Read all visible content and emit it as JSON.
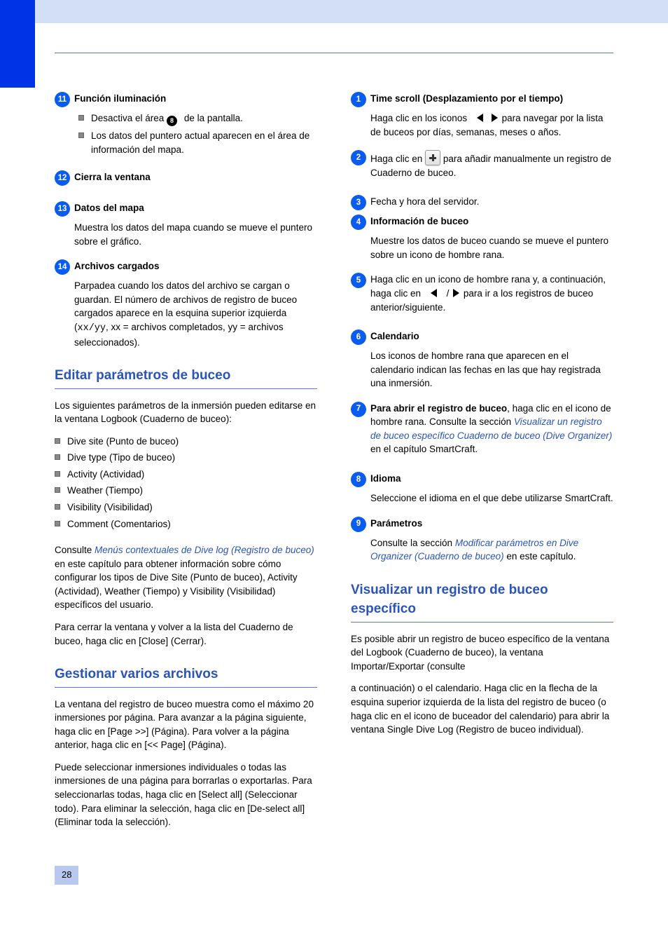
{
  "colors": {
    "accent": "#0a5cf0",
    "header_bar": "#d3dff5",
    "blue_block": "#0033e6",
    "rule": "#5577dd",
    "heading_text": "#2a54b8",
    "bullet_square": "#888888",
    "page_box_bg": "#b8c8ef",
    "body_text": "#000000",
    "background": "#ffffff"
  },
  "typography": {
    "body_font_size_pt": 10,
    "heading_font_size_pt": 14,
    "font_family": "Arial"
  },
  "left": {
    "items": [
      {
        "num": "11",
        "title": "Función iluminación",
        "bullets": [
          {
            "pre": "Desactiva el área ",
            "mid_num": "8",
            "post": " de la pantalla."
          },
          {
            "text": "Los datos del puntero actual aparecen en el área de información del mapa."
          }
        ]
      },
      {
        "num": "12",
        "title": "Cierra la ventana"
      },
      {
        "num": "13",
        "title": "Datos del mapa",
        "body": "Muestra los datos del mapa cuando se mueve el puntero sobre el gráfico."
      },
      {
        "num": "14",
        "title": "Archivos cargados",
        "body_pre": "Parpadea cuando los datos del archivo se cargan o guardan. El número de archivos de registro de buceo cargados aparece en la esquina superior izquierda (",
        "body_mono": "xx/yy",
        "body_post": ", xx = archivos completados, yy = archivos seleccionados)."
      }
    ],
    "heading1": "Editar parámetros de buceo",
    "intro1": "Los siguientes parámetros de la inmersión pueden editarse en la ventana Logbook (Cuaderno de buceo):",
    "params": [
      "Dive site (Punto de buceo)",
      "Dive type (Tipo de buceo)",
      "Activity (Actividad)",
      "Weather (Tiempo)",
      "Visibility (Visibilidad)",
      "Comment (Comentarios)"
    ],
    "seealso1_pre": "Consulte ",
    "seealso1_link": "Menús contextuales de Dive log (Registro de buceo)",
    "seealso1_post": " en este capítulo para obtener información sobre cómo configurar los tipos de Dive Site (Punto de buceo), Activity (Actividad), Weather (Tiempo) y Visibility (Visibilidad) específicos del usuario.",
    "closing1": "Para cerrar la ventana y volver a la lista del Cuaderno de buceo, haga clic en [Close] (Cerrar).",
    "heading2": "Gestionar varios archivos",
    "para2a": "La ventana del registro de buceo muestra como el máximo 20 inmersiones por página. Para avanzar a la página siguiente, haga clic en [Page >>] (Página). Para volver a la página anterior, haga clic en [<< Page] (Página).",
    "para2b": "Puede seleccionar inmersiones individuales o todas las inmersiones de una página para borrarlas o exportarlas. Para seleccionarlas todas, haga clic en [Select all] (Seleccionar todo). Para eliminar la selección, haga clic en [De-select all] (Eliminar toda la selección)."
  },
  "right": {
    "items": [
      {
        "num": "1",
        "title": "Time scroll (Desplazamiento por el tiempo)",
        "body_pre": "Haga clic en los iconos ",
        "body_post": " para navegar por la lista de buceos por días, semanas, meses o años."
      },
      {
        "num": "2",
        "body_pre": "Haga clic en ",
        "body_post": " para añadir manualmente un registro de Cuaderno de buceo."
      },
      {
        "num": "3",
        "body": "Fecha y hora del servidor."
      },
      {
        "num": "4",
        "title": "Información de buceo",
        "body": "Muestre los datos de buceo cuando se mueve el puntero sobre un icono de hombre rana."
      },
      {
        "num": "5",
        "body_pre": "Haga clic en un icono de hombre rana y, a continuación, haga clic en ",
        "body_mid": " / ",
        "body_post": " para ir a los registros de buceo anterior/siguiente."
      },
      {
        "num": "6",
        "title": "Calendario",
        "body": "Los iconos de hombre rana que aparecen en el calendario indican las fechas en las que hay registrada una inmersión."
      },
      {
        "num": "7",
        "title": "Para abrir el registro de buceo",
        "body": "haga clic en el icono de hombre rana. Consulte la sección",
        "link1": " Visualizar un registro de buceo específico",
        "link2_pre": " Cuaderno de buceo (Dive Organizer)",
        "body2": " en el capítulo SmartCraft."
      },
      {
        "num": "8",
        "title": "Idioma",
        "body": "Seleccione el idioma en el que debe utilizarse SmartCraft."
      },
      {
        "num": "9",
        "title": "Parámetros",
        "body_pre": "Consulte la sección ",
        "link": "Modificar parámetros en Dive Organizer (Cuaderno de buceo)",
        "body_post": " en este capítulo."
      }
    ],
    "heading": "Visualizar un registro de buceo específico",
    "para_a": "Es posible abrir un registro de buceo específico de la ventana del Logbook (Cuaderno de buceo), la ventana Importar/Exportar (consulte",
    "para_b": "a continuación) o el calendario. Haga clic en la flecha de la esquina superior izquierda de la lista del registro de buceo (o haga clic en el icono de buceador del calendario) para abrir la ventana Single Dive Log (Registro de buceo individual)."
  },
  "page_number": "28"
}
